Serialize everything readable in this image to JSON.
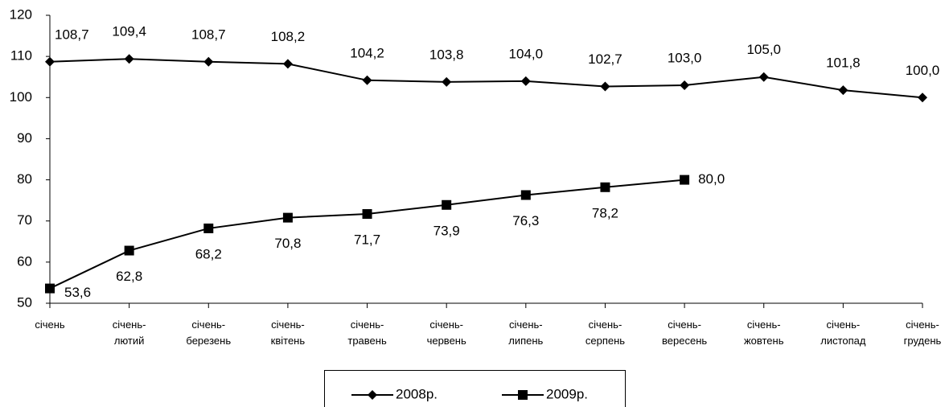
{
  "chart_data": {
    "type": "line",
    "categories": [
      "січень",
      "січень-\nлютий",
      "січень-\nберезень",
      "січень-\nквітень",
      "січень-\nтравень",
      "січень-\nчервень",
      "січень-\nлипень",
      "січень-\nсерпень",
      "січень-\nвересень",
      "січень-\nжовтень",
      "січень-\nлистопад",
      "січень-\nгрудень"
    ],
    "series": [
      {
        "name": "2008р.",
        "color": "#000000",
        "marker": "diamond",
        "values": [
          108.7,
          109.4,
          108.7,
          108.2,
          104.2,
          103.8,
          104.0,
          102.7,
          103.0,
          105.0,
          101.8,
          100.0
        ],
        "value_labels": [
          "108,7",
          "109,4",
          "108,7",
          "108,2",
          "104,2",
          "103,8",
          "104,0",
          "102,7",
          "103,0",
          "105,0",
          "101,8",
          "100,0"
        ]
      },
      {
        "name": "2009р.",
        "color": "#000000",
        "marker": "square",
        "values": [
          53.6,
          62.8,
          68.2,
          70.8,
          71.7,
          73.9,
          76.3,
          78.2,
          80.0,
          null,
          null,
          null
        ],
        "value_labels": [
          "53,6",
          "62,8",
          "68,2",
          "70,8",
          "71,7",
          "73,9",
          "76,3",
          "78,2",
          "80,0",
          null,
          null,
          null
        ]
      }
    ],
    "ylim": [
      50,
      120
    ],
    "yticks": [
      50,
      60,
      70,
      80,
      90,
      100,
      110,
      120
    ],
    "grid": false,
    "legend": "bottom"
  }
}
